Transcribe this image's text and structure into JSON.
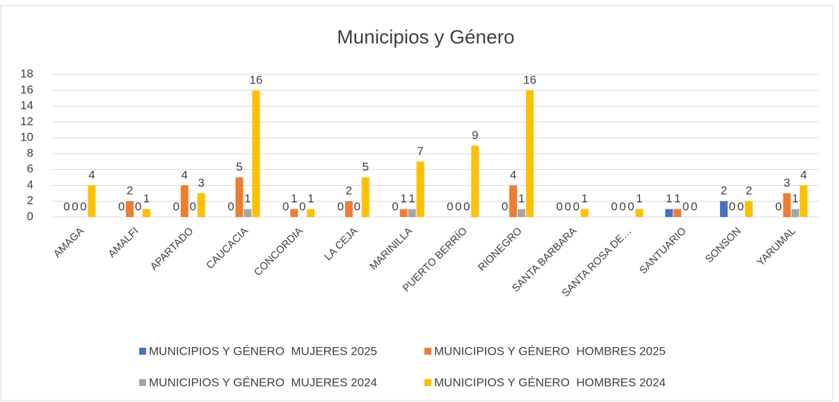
{
  "chart_data": {
    "type": "bar",
    "title": "Municipios y Género",
    "categories": [
      "AMAGA",
      "AMALFI",
      "APARTADO",
      "CAUCACIA",
      "CONCORDIA",
      "LA CEJA",
      "MARINILLA",
      "PUERTO BERRÍO",
      "RIONEGRO",
      "SANTA BARBARA",
      "SANTA ROSA DE…",
      "SANTUARIO",
      "SONSON",
      "YARUMAL"
    ],
    "series": [
      {
        "name": "MUNICIPIOS Y GÉNERO  MUJERES 2025",
        "color": "#4472c4",
        "values": [
          0,
          0,
          0,
          0,
          0,
          0,
          0,
          0,
          0,
          0,
          0,
          1,
          2,
          0
        ]
      },
      {
        "name": "MUNICIPIOS Y GÉNERO  HOMBRES 2025",
        "color": "#ed7d31",
        "values": [
          0,
          2,
          4,
          5,
          1,
          2,
          1,
          0,
          4,
          0,
          0,
          1,
          0,
          3
        ]
      },
      {
        "name": "MUNICIPIOS Y GÉNERO  MUJERES 2024",
        "color": "#a5a5a5",
        "values": [
          0,
          0,
          0,
          1,
          0,
          0,
          1,
          0,
          1,
          0,
          0,
          0,
          0,
          1
        ]
      },
      {
        "name": "MUNICIPIOS Y GÉNERO  HOMBRES 2024",
        "color": "#ffc000",
        "values": [
          4,
          1,
          3,
          16,
          1,
          5,
          7,
          9,
          16,
          1,
          1,
          0,
          2,
          4
        ]
      }
    ],
    "ylim": [
      0,
      18
    ],
    "yticks": [
      0,
      2,
      4,
      6,
      8,
      10,
      12,
      14,
      16,
      18
    ],
    "grid": true,
    "legend": "bottom"
  }
}
